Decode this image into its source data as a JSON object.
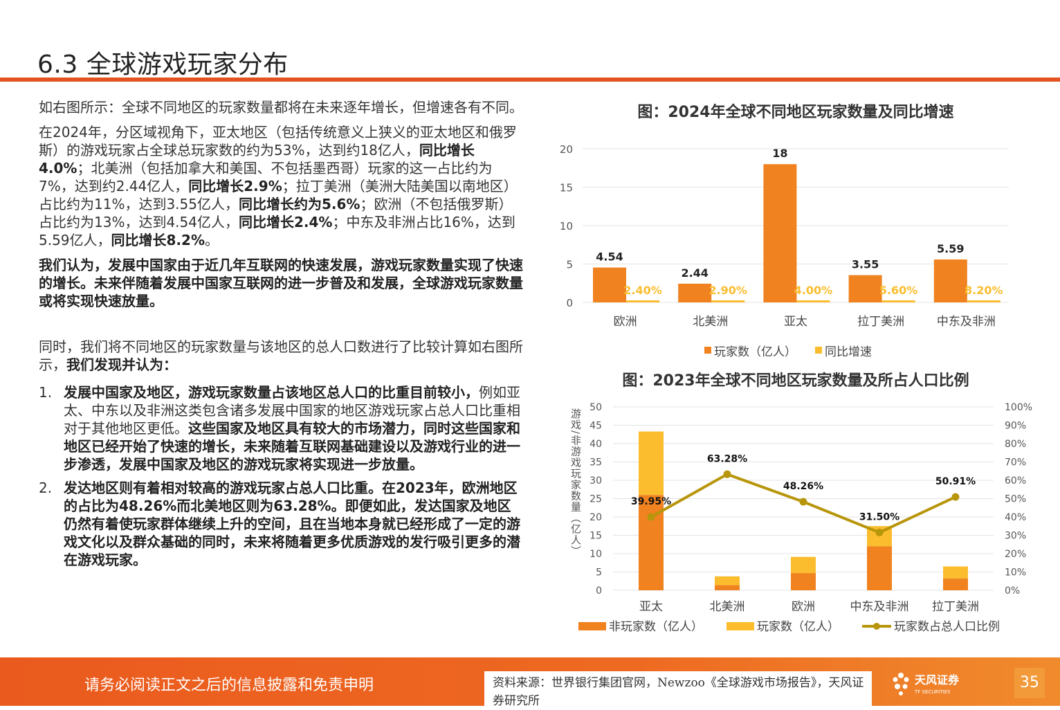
{
  "title": "6.3 全球游戏玩家分布",
  "left": {
    "p1": "如右图所示：全球不同地区的玩家数量都将在未来逐年增长，但增速各有不同。",
    "p2_parts": [
      {
        "t": "在2024年，分区域视角下，亚太地区（包括传统意义上狭义的亚太地区和俄罗斯）的游戏玩家占全球总玩家数的约为53%，达到约18亿人，",
        "b": false
      },
      {
        "t": "同比增长4.0%",
        "b": true
      },
      {
        "t": "；北美洲（包括加拿大和美国、不包括墨西哥）玩家的这一占比约为7%，达到约2.44亿人，",
        "b": false
      },
      {
        "t": "同比增长2.9%",
        "b": true
      },
      {
        "t": "；拉丁美洲（美洲大陆美国以南地区）占比约为11%，达到3.55亿人，",
        "b": false
      },
      {
        "t": "同比增长约为5.6%",
        "b": true
      },
      {
        "t": "；欧洲（不包括俄罗斯）占比约为13%，达到4.54亿人，",
        "b": false
      },
      {
        "t": "同比增长2.4%",
        "b": true
      },
      {
        "t": "；中东及非洲占比16%，达到5.59亿人，",
        "b": false
      },
      {
        "t": "同比增长8.2%",
        "b": true
      },
      {
        "t": "。",
        "b": false
      }
    ],
    "p3": "我们认为，发展中国家由于近几年互联网的快速发展，游戏玩家数量实现了快速的增长。未来伴随着发展中国家互联网的进一步普及和发展，全球游戏玩家数量或将实现快速放量。",
    "p4_plain": "同时，我们将不同地区的玩家数量与该地区的总人口数进行了比较计算如右图所示，",
    "p4_bold": "我们发现并认为：",
    "item1_num": "1.",
    "item1_parts": [
      {
        "t": "发展中国家及地区，游戏玩家数量占该地区总人口的比重目前较小，",
        "b": true
      },
      {
        "t": "例如亚太、中东以及非洲这类包含诸多发展中国家的地区游戏玩家占总人口比重相对于其他地区更低。",
        "b": false
      },
      {
        "t": "这些国家及地区具有较大的市场潜力，同时这些国家和地区已经开始了快速的增长，未来随着互联网基础建设以及游戏行业的进一步渗透，发展中国家及地区的游戏玩家将实现进一步放量。",
        "b": true
      }
    ],
    "item2_num": "2.",
    "item2_text": "发达地区则有着相对较高的游戏玩家占总人口比重。在2023年，欧洲地区的占比为48.26%而北美地区则为63.28%。即便如此，发达国家及地区仍然有着使玩家群体继续上升的空间，且在当地本身就已经形成了一定的游戏文化以及群众基础的同时，未来将随着更多优质游戏的发行吸引更多的潜在游戏玩家。"
  },
  "chart_data": [
    {
      "type": "bar",
      "title": "图：2024年全球不同地区玩家数量及同比增速",
      "categories": [
        "欧洲",
        "北美洲",
        "亚太",
        "拉丁美洲",
        "中东及非洲"
      ],
      "series": [
        {
          "name": "玩家数（亿人）",
          "values": [
            4.54,
            2.44,
            18,
            3.55,
            5.59
          ],
          "labels": [
            "4.54",
            "2.44",
            "18",
            "3.55",
            "5.59"
          ],
          "color": "#f08220"
        },
        {
          "name": "同比增速",
          "values": [
            0.024,
            0.029,
            0.04,
            0.056,
            0.082
          ],
          "labels": [
            "2.40%",
            "2.90%",
            "4.00%",
            "5.60%",
            "8.20%"
          ],
          "color": "#fbbd2e"
        }
      ],
      "yticks": [
        "0",
        "5",
        "10",
        "15",
        "20"
      ],
      "ylim": [
        0,
        20
      ],
      "legend": "bottom"
    },
    {
      "type": "bar",
      "title": "图：2023年全球不同地区玩家数量及所占人口比例",
      "categories": [
        "亚太",
        "北美洲",
        "欧洲",
        "中东及非洲",
        "拉丁美洲"
      ],
      "ylabel": "游戏/非游戏玩家数量（亿人）",
      "series": [
        {
          "name": "非玩家数（亿人）",
          "values": [
            26,
            1.4,
            4.7,
            12,
            3.2
          ],
          "color": "#f08220"
        },
        {
          "name": "玩家数（亿人）",
          "values": [
            17.3,
            2.4,
            4.4,
            5.5,
            3.3
          ],
          "color": "#fbbd2e"
        },
        {
          "name": "玩家数占总人口比例",
          "values": [
            0.3995,
            0.6328,
            0.4826,
            0.315,
            0.5091
          ],
          "labels": [
            "39.95%",
            "63.28%",
            "48.26%",
            "31.50%",
            "50.91%"
          ],
          "color": "#b8960b"
        }
      ],
      "yticks": [
        "0",
        "5",
        "10",
        "15",
        "20",
        "25",
        "30",
        "35",
        "40",
        "45",
        "50"
      ],
      "ylim": [
        0,
        50
      ],
      "y2ticks": [
        "0%",
        "10%",
        "20%",
        "30%",
        "40%",
        "50%",
        "60%",
        "70%",
        "80%",
        "90%",
        "100%"
      ],
      "y2lim": [
        0,
        1
      ],
      "legend": "bottom"
    }
  ],
  "footer": {
    "disclaimer": "请务必阅读正文之后的信息披露和免责申明",
    "source": "资料来源：世界银行集团官网，Newzoo《全球游戏市场报告》，天风证券研究所",
    "logo_cn": "天风证券",
    "logo_en": "TF SECURITIES",
    "page": "35"
  },
  "colors": {
    "accent": "#e4531f",
    "orange": "#f08220",
    "yellow": "#fbbd2e",
    "olive": "#b8960b"
  }
}
